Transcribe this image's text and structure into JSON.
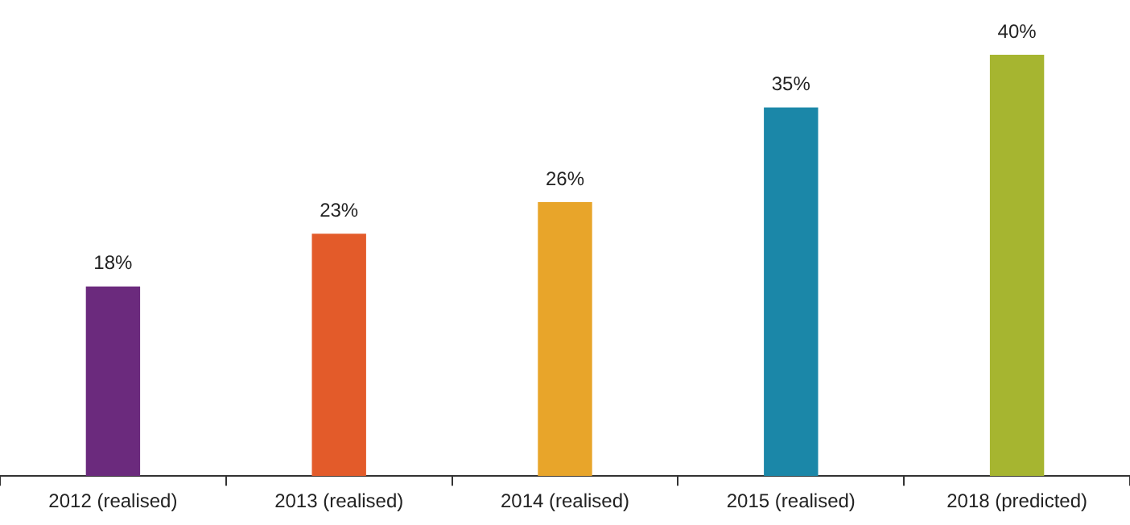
{
  "chart_data": {
    "type": "bar",
    "categories": [
      "2012 (realised)",
      "2013 (realised)",
      "2014 (realised)",
      "2015 (realised)",
      "2018 (predicted)"
    ],
    "values": [
      18,
      23,
      26,
      35,
      40
    ],
    "colors": [
      "#6b2a7d",
      "#e35b2a",
      "#e8a52a",
      "#1b87a8",
      "#a6b530"
    ],
    "value_labels": [
      "18%",
      "23%",
      "26%",
      "35%",
      "40%"
    ]
  }
}
